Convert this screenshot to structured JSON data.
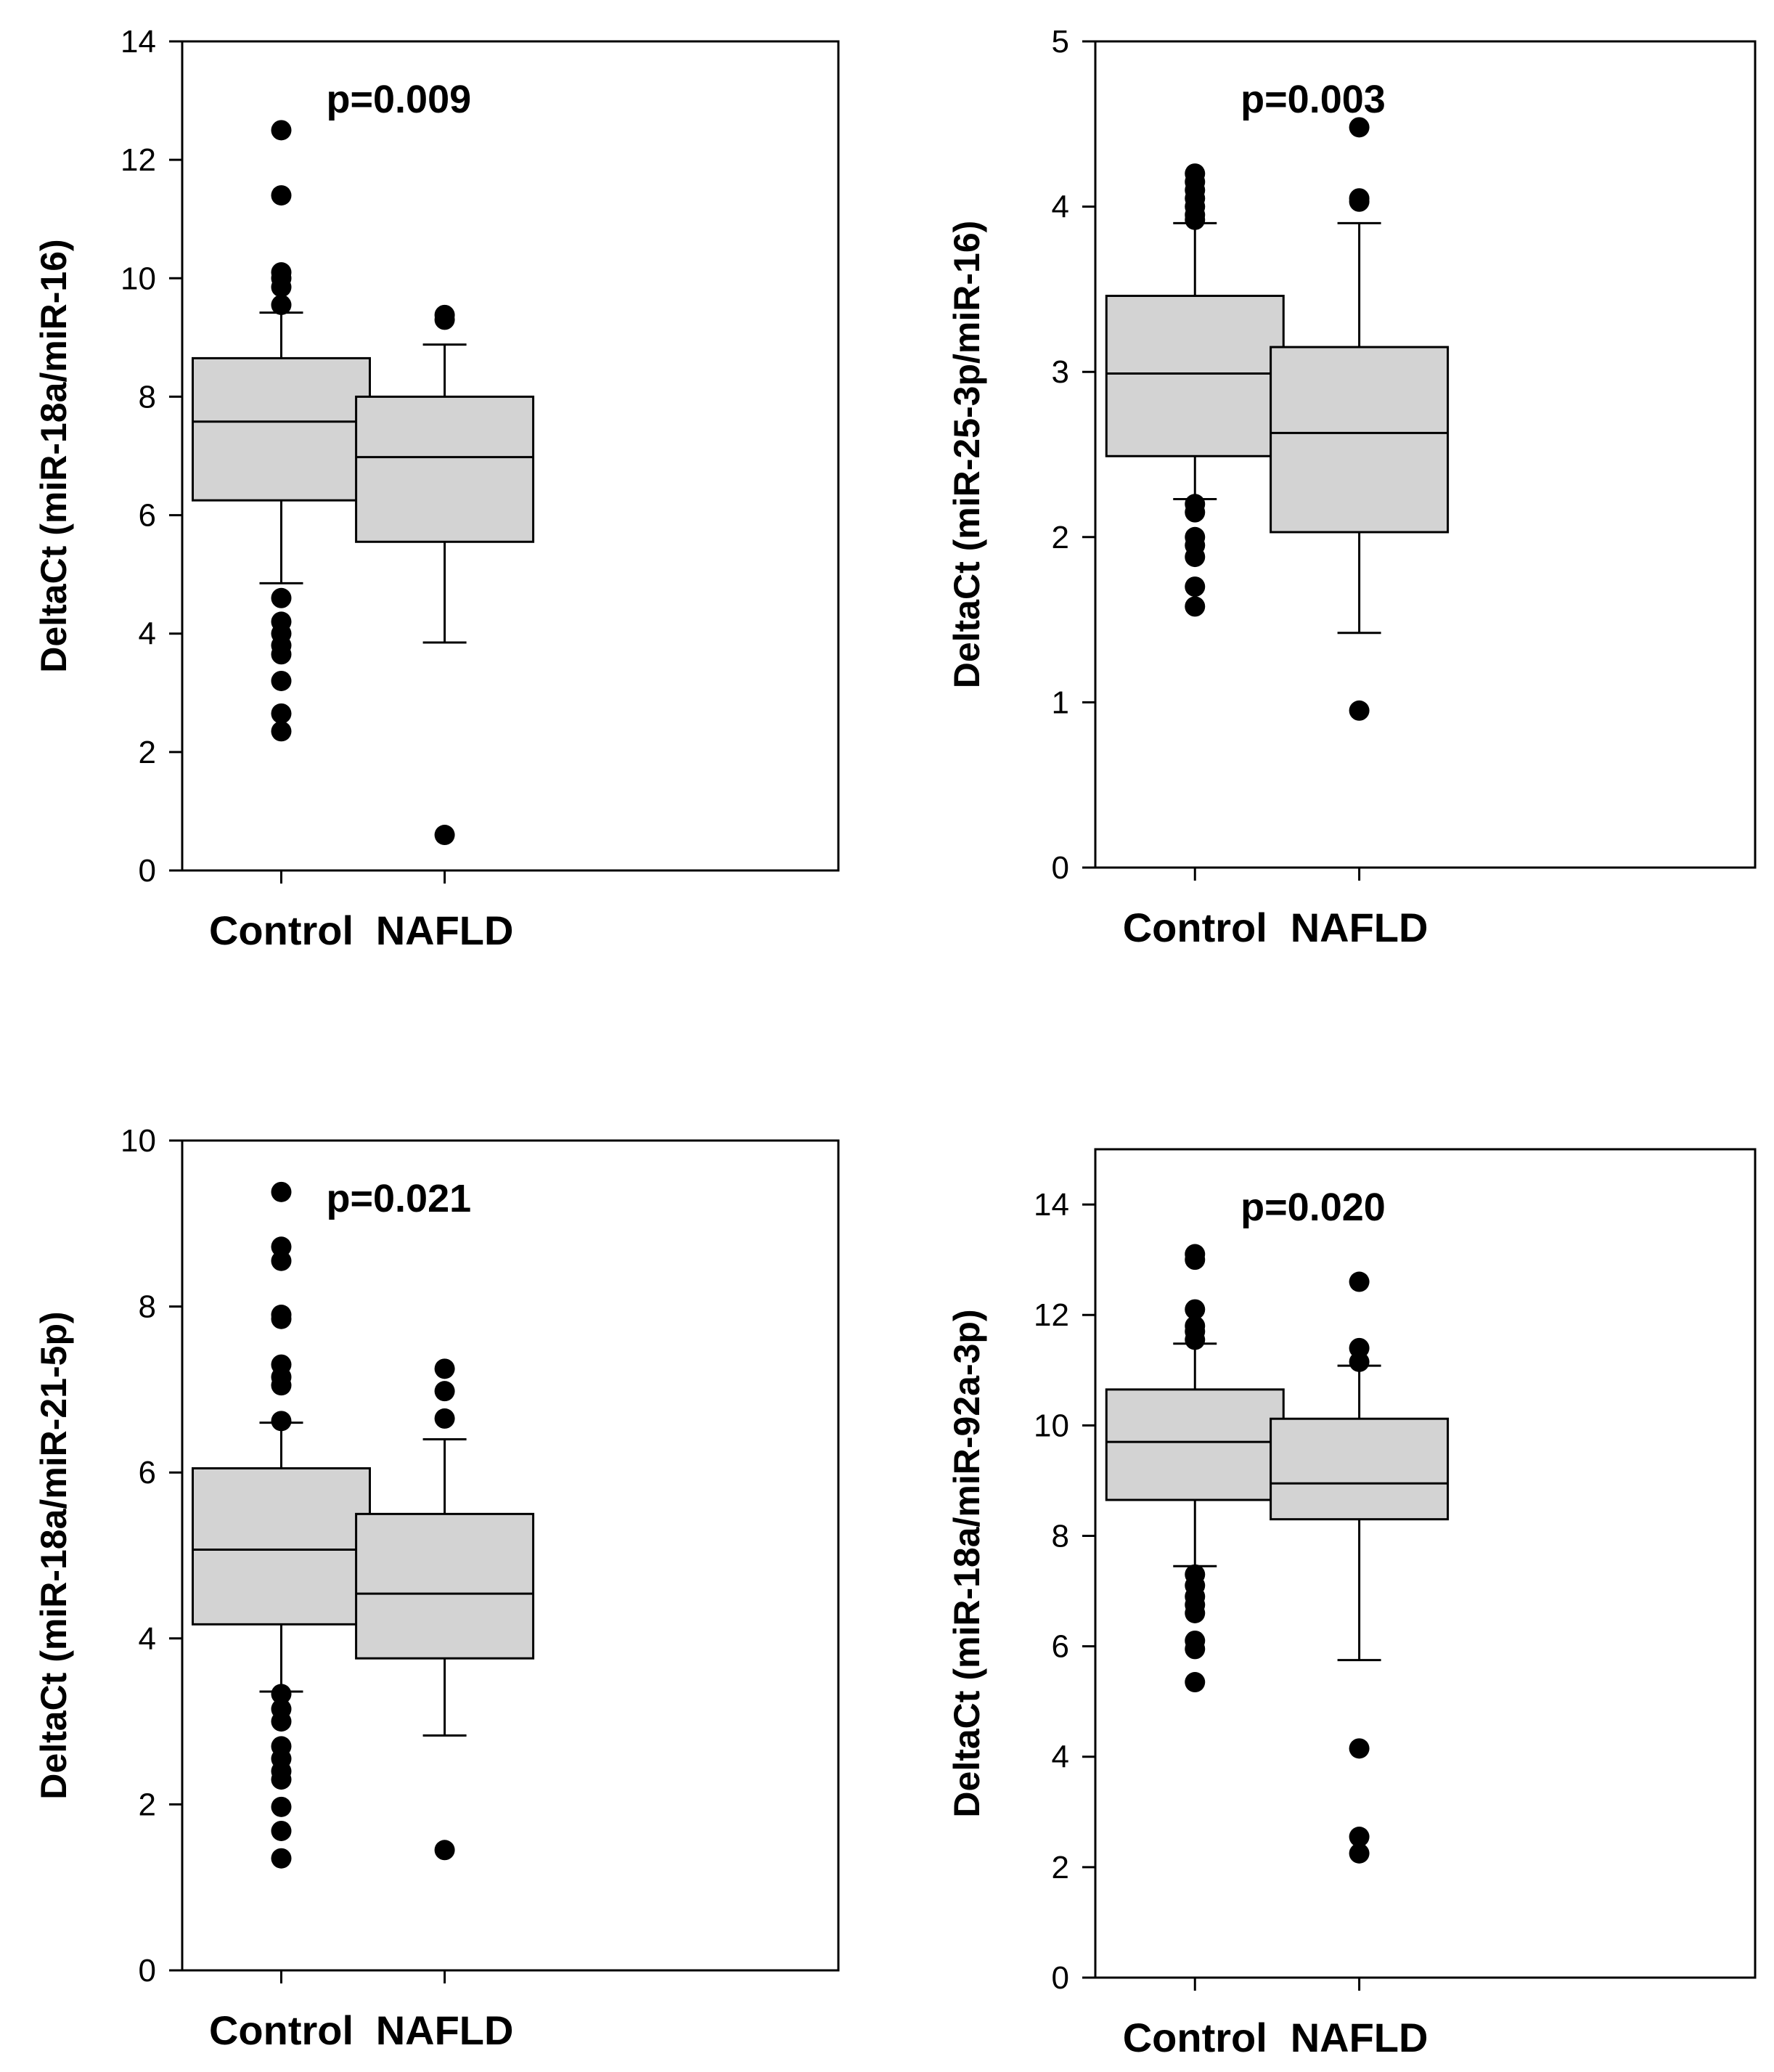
{
  "chart_data": [
    {
      "type": "box",
      "title": "",
      "annotation": "p=0.009",
      "ylabel": "DeltaCt (miR-18a/miR-16)",
      "ylim": [
        0,
        14
      ],
      "yticks": [
        0,
        2,
        4,
        6,
        8,
        10,
        12,
        14
      ],
      "yticklabels": [
        "0",
        "2",
        "4",
        "6",
        "8",
        "10",
        "12",
        "14"
      ],
      "categories": [
        "Control",
        "NAFLD"
      ],
      "boxes": [
        {
          "name": "Control",
          "whisker_low": 4.85,
          "q1": 6.25,
          "median": 7.58,
          "q3": 8.65,
          "whisker_high": 9.42,
          "outliers": [
            12.5,
            11.4,
            10.1,
            10.0,
            9.85,
            9.55,
            4.6,
            4.2,
            4.0,
            3.8,
            3.65,
            3.2,
            2.65,
            2.35
          ]
        },
        {
          "name": "NAFLD",
          "whisker_low": 3.85,
          "q1": 5.55,
          "median": 6.98,
          "q3": 8.0,
          "whisker_high": 8.88,
          "outliers": [
            9.38,
            9.3,
            0.6
          ]
        }
      ]
    },
    {
      "type": "box",
      "title": "",
      "annotation": "p=0.003",
      "ylabel": "DeltaCt (miR-25-3p/miR-16)",
      "ylim": [
        0,
        5
      ],
      "yticks": [
        0,
        1,
        2,
        3,
        4,
        5
      ],
      "yticklabels": [
        "0",
        "1",
        "2",
        "3",
        "4",
        "5"
      ],
      "categories": [
        "Control",
        "NAFLD"
      ],
      "boxes": [
        {
          "name": "Control",
          "whisker_low": 2.23,
          "q1": 2.49,
          "median": 2.99,
          "q3": 3.46,
          "whisker_high": 3.9,
          "outliers": [
            4.2,
            4.15,
            4.1,
            4.05,
            4.0,
            3.95,
            3.92,
            2.2,
            2.15,
            2.0,
            1.95,
            1.88,
            1.7,
            1.58
          ]
        },
        {
          "name": "NAFLD",
          "whisker_low": 1.42,
          "q1": 2.03,
          "median": 2.63,
          "q3": 3.15,
          "whisker_high": 3.9,
          "outliers": [
            4.48,
            4.05,
            4.03,
            0.95
          ]
        }
      ]
    },
    {
      "type": "box",
      "title": "",
      "annotation": "p=0.021",
      "ylabel": "DeltaCt (miR-18a/miR-21-5p)",
      "ylim": [
        0,
        10
      ],
      "yticks": [
        0,
        2,
        4,
        6,
        8,
        10
      ],
      "yticklabels": [
        "0",
        "2",
        "4",
        "6",
        "8",
        "10"
      ],
      "categories": [
        "Control",
        "NAFLD"
      ],
      "boxes": [
        {
          "name": "Control",
          "whisker_low": 3.36,
          "q1": 4.17,
          "median": 5.07,
          "q3": 6.05,
          "whisker_high": 6.6,
          "outliers": [
            9.38,
            8.72,
            8.55,
            7.9,
            7.85,
            7.3,
            7.15,
            7.05,
            6.62,
            3.33,
            3.15,
            3.0,
            2.7,
            2.55,
            2.4,
            2.3,
            1.97,
            1.68,
            1.35
          ]
        },
        {
          "name": "NAFLD",
          "whisker_low": 2.83,
          "q1": 3.76,
          "median": 4.54,
          "q3": 5.5,
          "whisker_high": 6.4,
          "outliers": [
            7.25,
            6.98,
            6.65,
            1.45
          ]
        }
      ]
    },
    {
      "type": "box",
      "title": "",
      "annotation": "p=0.020",
      "ylabel": "DeltaCt (miR-18a/miR-92a-3p)",
      "ylim": [
        0,
        15
      ],
      "yticks": [
        0,
        2,
        4,
        6,
        8,
        10,
        12,
        14
      ],
      "yticklabels": [
        "0",
        "2",
        "4",
        "6",
        "8",
        "10",
        "12",
        "14"
      ],
      "categories": [
        "Control",
        "NAFLD"
      ],
      "boxes": [
        {
          "name": "Control",
          "whisker_low": 7.45,
          "q1": 8.65,
          "median": 9.7,
          "q3": 10.65,
          "whisker_high": 11.48,
          "outliers": [
            13.1,
            13.0,
            12.1,
            11.8,
            11.7,
            11.55,
            7.3,
            7.1,
            6.9,
            6.75,
            6.6,
            6.1,
            5.95,
            5.35
          ]
        },
        {
          "name": "NAFLD",
          "whisker_low": 5.75,
          "q1": 8.3,
          "median": 8.95,
          "q3": 10.12,
          "whisker_high": 11.08,
          "outliers": [
            12.6,
            11.4,
            11.15,
            4.15,
            2.55,
            2.25
          ]
        }
      ]
    }
  ]
}
